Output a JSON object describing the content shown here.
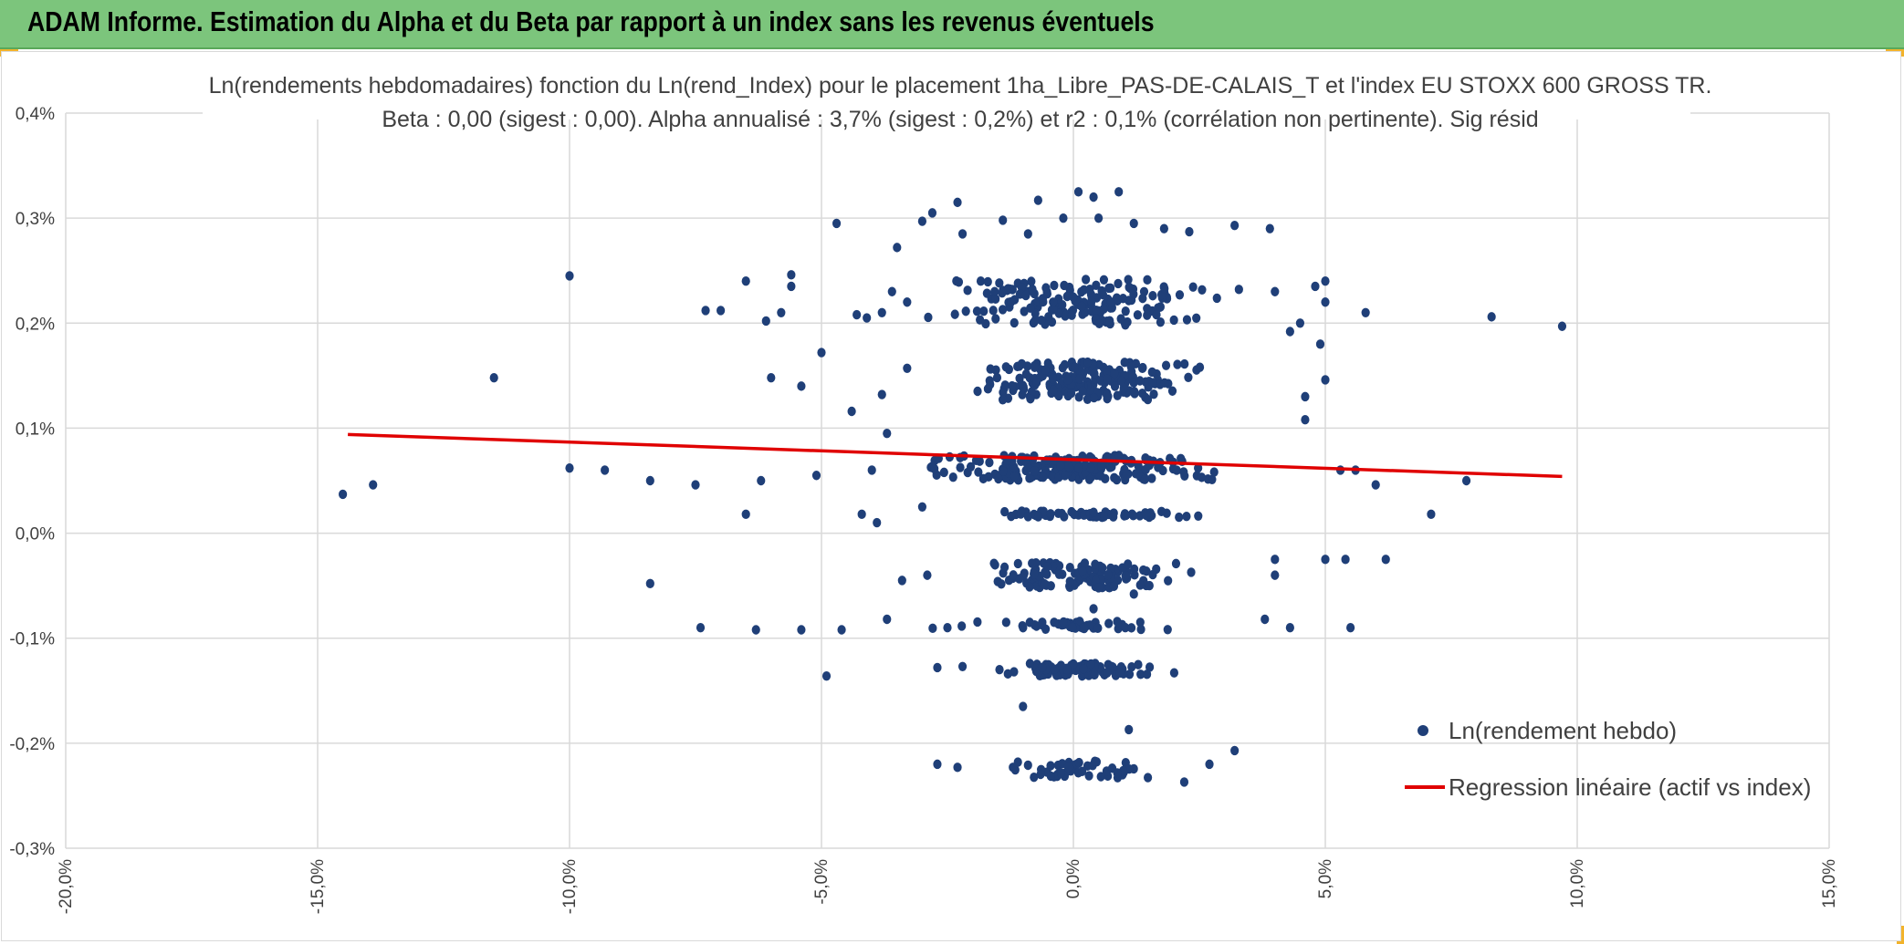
{
  "header": {
    "title": "ADAM Informe. Estimation du Alpha et du Beta par rapport à un index sans les revenus éventuels",
    "background_color": "#7cc57c",
    "accent_color": "#f2b32b"
  },
  "chart_data": {
    "type": "scatter",
    "title_line1": "Ln(rendements hebdomadaires) fonction du Ln(rend_Index) pour le placement 1ha_Libre_PAS-DE-CALAIS_T et l'index EU STOXX 600 GROSS TR.",
    "title_line2": "Beta : 0,00 (sigest : 0,00). Alpha annualisé : 3,7% (sigest : 0,2%) et r2 : 0,1% (corrélation non pertinente). Sig résid",
    "xlabel": "",
    "ylabel": "",
    "xlim": [
      -0.2,
      0.15
    ],
    "ylim": [
      -0.003,
      0.004
    ],
    "x_ticks": [
      -0.2,
      -0.15,
      -0.1,
      -0.05,
      0.0,
      0.05,
      0.1,
      0.15
    ],
    "x_tick_labels": [
      "-20,0%",
      "-15,0%",
      "-10,0%",
      "-5,0%",
      "0,0%",
      "5,0%",
      "10,0%",
      "15,0%"
    ],
    "y_ticks": [
      0.004,
      0.003,
      0.002,
      0.001,
      0.0,
      -0.001,
      -0.002,
      -0.003
    ],
    "y_tick_labels": [
      "0,4%",
      "0,3%",
      "0,2%",
      "0,1%",
      "0,0%",
      "-0,1%",
      "-0,2%",
      "-0,3%"
    ],
    "grid": true,
    "legend_position": "bottom-right",
    "series": [
      {
        "name": "Ln(rendement hebdo)",
        "kind": "scatter",
        "color": "#1f3f78",
        "clusters": [
          {
            "y": 0.0022,
            "y_spread": 0.00022,
            "x_center": 0.002,
            "x_sigma": 0.018,
            "count": 170
          },
          {
            "y": 0.00145,
            "y_spread": 0.00018,
            "x_center": 0.002,
            "x_sigma": 0.014,
            "count": 190
          },
          {
            "y": 0.00062,
            "y_spread": 0.00012,
            "x_center": 0.0,
            "x_sigma": 0.017,
            "count": 200
          },
          {
            "y": 0.00018,
            "y_spread": 3e-05,
            "x_center": 0.002,
            "x_sigma": 0.015,
            "count": 60
          },
          {
            "y": -0.0004,
            "y_spread": 0.00012,
            "x_center": 0.002,
            "x_sigma": 0.014,
            "count": 110
          },
          {
            "y": -0.00088,
            "y_spread": 4e-05,
            "x_center": 0.001,
            "x_sigma": 0.016,
            "count": 45
          },
          {
            "y": -0.0013,
            "y_spread": 6e-05,
            "x_center": 0.0,
            "x_sigma": 0.009,
            "count": 95
          },
          {
            "y": -0.00225,
            "y_spread": 8e-05,
            "x_center": 0.001,
            "x_sigma": 0.009,
            "count": 45
          }
        ],
        "points": [
          {
            "x": -0.145,
            "y": 0.00037
          },
          {
            "x": -0.139,
            "y": 0.00046
          },
          {
            "x": -0.115,
            "y": 0.00148
          },
          {
            "x": -0.1,
            "y": 0.00245
          },
          {
            "x": -0.1,
            "y": 0.00062
          },
          {
            "x": -0.093,
            "y": 0.0006
          },
          {
            "x": -0.084,
            "y": 0.0005
          },
          {
            "x": -0.084,
            "y": -0.00048
          },
          {
            "x": -0.075,
            "y": 0.00046
          },
          {
            "x": -0.073,
            "y": 0.00212
          },
          {
            "x": -0.07,
            "y": 0.00212
          },
          {
            "x": -0.074,
            "y": -0.0009
          },
          {
            "x": -0.065,
            "y": 0.0024
          },
          {
            "x": -0.065,
            "y": 0.00018
          },
          {
            "x": -0.063,
            "y": -0.00092
          },
          {
            "x": -0.054,
            "y": 0.0014
          },
          {
            "x": -0.054,
            "y": -0.00092
          },
          {
            "x": -0.05,
            "y": 0.00172
          },
          {
            "x": -0.049,
            "y": -0.00136
          },
          {
            "x": -0.046,
            "y": -0.00092
          },
          {
            "x": -0.047,
            "y": 0.00295
          },
          {
            "x": -0.056,
            "y": 0.00246
          },
          {
            "x": -0.06,
            "y": 0.00148
          },
          {
            "x": -0.062,
            "y": 0.0005
          },
          {
            "x": -0.058,
            "y": 0.0021
          },
          {
            "x": -0.061,
            "y": 0.00202
          },
          {
            "x": -0.056,
            "y": 0.00235
          },
          {
            "x": -0.035,
            "y": 0.00272
          },
          {
            "x": -0.036,
            "y": 0.0023
          },
          {
            "x": -0.038,
            "y": 0.00132
          },
          {
            "x": -0.038,
            "y": 0.0021
          },
          {
            "x": -0.033,
            "y": 0.0022
          },
          {
            "x": -0.04,
            "y": 0.0006
          },
          {
            "x": -0.034,
            "y": -0.00045
          },
          {
            "x": -0.037,
            "y": -0.00082
          },
          {
            "x": -0.03,
            "y": 0.00297
          },
          {
            "x": -0.028,
            "y": 0.00305
          },
          {
            "x": -0.023,
            "y": 0.00315
          },
          {
            "x": -0.022,
            "y": 0.00285
          },
          {
            "x": -0.014,
            "y": 0.00298
          },
          {
            "x": -0.009,
            "y": 0.00285
          },
          {
            "x": -0.007,
            "y": 0.00317
          },
          {
            "x": -0.002,
            "y": 0.003
          },
          {
            "x": 0.001,
            "y": 0.00325
          },
          {
            "x": 0.004,
            "y": 0.0032
          },
          {
            "x": 0.009,
            "y": 0.00325
          },
          {
            "x": 0.005,
            "y": 0.003
          },
          {
            "x": 0.012,
            "y": 0.00295
          },
          {
            "x": 0.018,
            "y": 0.0029
          },
          {
            "x": 0.023,
            "y": 0.00287
          },
          {
            "x": 0.032,
            "y": 0.00293
          },
          {
            "x": 0.039,
            "y": 0.0029
          },
          {
            "x": 0.04,
            "y": 0.0023
          },
          {
            "x": 0.043,
            "y": 0.00192
          },
          {
            "x": 0.045,
            "y": 0.002
          },
          {
            "x": 0.048,
            "y": 0.00235
          },
          {
            "x": 0.05,
            "y": 0.0024
          },
          {
            "x": 0.05,
            "y": 0.0022
          },
          {
            "x": 0.049,
            "y": 0.0018
          },
          {
            "x": 0.05,
            "y": 0.00146
          },
          {
            "x": 0.046,
            "y": 0.00108
          },
          {
            "x": 0.046,
            "y": 0.0013
          },
          {
            "x": 0.058,
            "y": 0.0021
          },
          {
            "x": 0.078,
            "y": 0.0005
          },
          {
            "x": 0.083,
            "y": 0.00206
          },
          {
            "x": 0.097,
            "y": 0.00197
          },
          {
            "x": 0.071,
            "y": 0.00018
          },
          {
            "x": 0.062,
            "y": -0.00025
          },
          {
            "x": 0.054,
            "y": -0.00025
          },
          {
            "x": 0.05,
            "y": -0.00025
          },
          {
            "x": 0.055,
            "y": -0.0009
          },
          {
            "x": 0.06,
            "y": 0.00046
          },
          {
            "x": 0.056,
            "y": 0.0006
          },
          {
            "x": 0.053,
            "y": 0.0006
          },
          {
            "x": 0.04,
            "y": -0.00025
          },
          {
            "x": 0.04,
            "y": -0.0004
          },
          {
            "x": 0.043,
            "y": -0.0009
          },
          {
            "x": 0.038,
            "y": -0.00082
          },
          {
            "x": 0.032,
            "y": -0.00207
          },
          {
            "x": 0.027,
            "y": -0.0022
          },
          {
            "x": 0.022,
            "y": -0.00237
          },
          {
            "x": -0.027,
            "y": -0.00128
          },
          {
            "x": -0.022,
            "y": -0.00127
          },
          {
            "x": -0.013,
            "y": -0.00134
          },
          {
            "x": -0.01,
            "y": -0.00165
          },
          {
            "x": 0.011,
            "y": -0.00187
          },
          {
            "x": -0.027,
            "y": -0.0022
          },
          {
            "x": -0.023,
            "y": -0.00223
          },
          {
            "x": -0.012,
            "y": -0.00223
          },
          {
            "x": 0.02,
            "y": -0.00133
          },
          {
            "x": 0.004,
            "y": -0.00072
          },
          {
            "x": 0.005,
            "y": -0.00052
          },
          {
            "x": 0.012,
            "y": -0.00058
          },
          {
            "x": -0.043,
            "y": 0.00208
          },
          {
            "x": -0.044,
            "y": 0.00116
          },
          {
            "x": -0.051,
            "y": 0.00055
          },
          {
            "x": -0.042,
            "y": 0.00018
          },
          {
            "x": -0.039,
            "y": 0.0001
          },
          {
            "x": -0.03,
            "y": 0.00025
          },
          {
            "x": -0.029,
            "y": -0.0004
          },
          {
            "x": -0.025,
            "y": -0.0009
          },
          {
            "x": -0.033,
            "y": 0.00157
          },
          {
            "x": -0.041,
            "y": 0.00205
          },
          {
            "x": -0.037,
            "y": 0.00095
          }
        ]
      },
      {
        "name": "Regression linéaire (actif vs index)",
        "kind": "line",
        "color": "#e00000",
        "x": [
          -0.144,
          0.097
        ],
        "y": [
          0.00094,
          0.00054
        ]
      }
    ]
  }
}
